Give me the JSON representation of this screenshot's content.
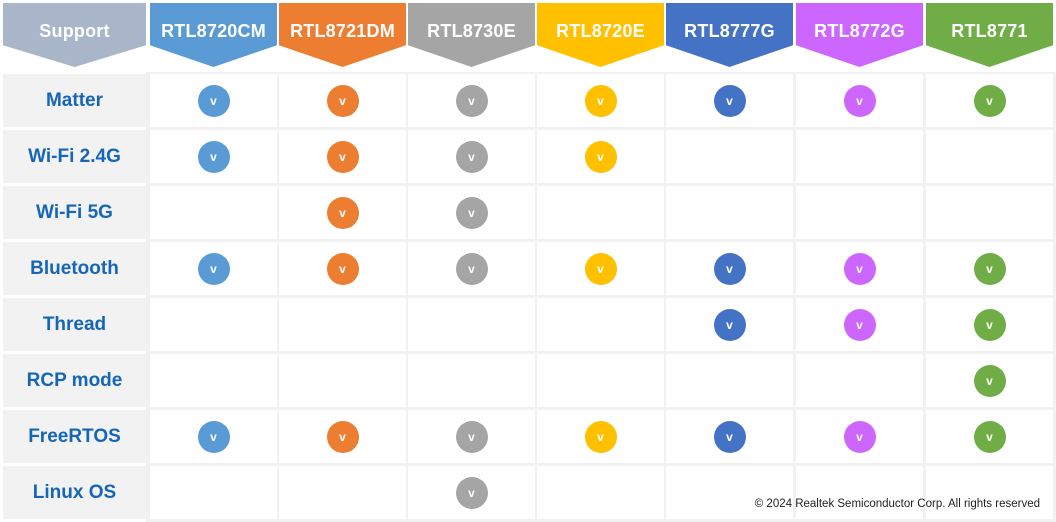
{
  "table": {
    "corner_label": "Support",
    "corner_color": "#a9b5c8",
    "columns": [
      {
        "name": "RTL8720CM",
        "color": "#5b9bd5"
      },
      {
        "name": "RTL8721DM",
        "color": "#ed7d31"
      },
      {
        "name": "RTL8730E",
        "color": "#a5a5a5"
      },
      {
        "name": "RTL8720E",
        "color": "#ffc000"
      },
      {
        "name": "RTL8777G",
        "color": "#4472c4"
      },
      {
        "name": "RTL8772G",
        "color": "#cc66ff"
      },
      {
        "name": "RTL8771",
        "color": "#70ad47"
      }
    ],
    "check_glyph": "v",
    "rows": [
      {
        "feature": "Matter",
        "support": [
          true,
          true,
          true,
          true,
          true,
          true,
          true
        ]
      },
      {
        "feature": "Wi-Fi 2.4G",
        "support": [
          true,
          true,
          true,
          true,
          false,
          false,
          false
        ]
      },
      {
        "feature": "Wi-Fi 5G",
        "support": [
          false,
          true,
          true,
          false,
          false,
          false,
          false
        ]
      },
      {
        "feature": "Bluetooth",
        "support": [
          true,
          true,
          true,
          true,
          true,
          true,
          true
        ]
      },
      {
        "feature": "Thread",
        "support": [
          false,
          false,
          false,
          false,
          true,
          true,
          true
        ]
      },
      {
        "feature": "RCP mode",
        "support": [
          false,
          false,
          false,
          false,
          false,
          false,
          true
        ]
      },
      {
        "feature": "FreeRTOS",
        "support": [
          true,
          true,
          true,
          true,
          true,
          true,
          true
        ]
      },
      {
        "feature": "Linux OS",
        "support": [
          false,
          false,
          true,
          false,
          false,
          false,
          false
        ]
      }
    ]
  },
  "footer": {
    "copyright": "© 2024 Realtek Semiconductor Corp. All rights reserved"
  }
}
